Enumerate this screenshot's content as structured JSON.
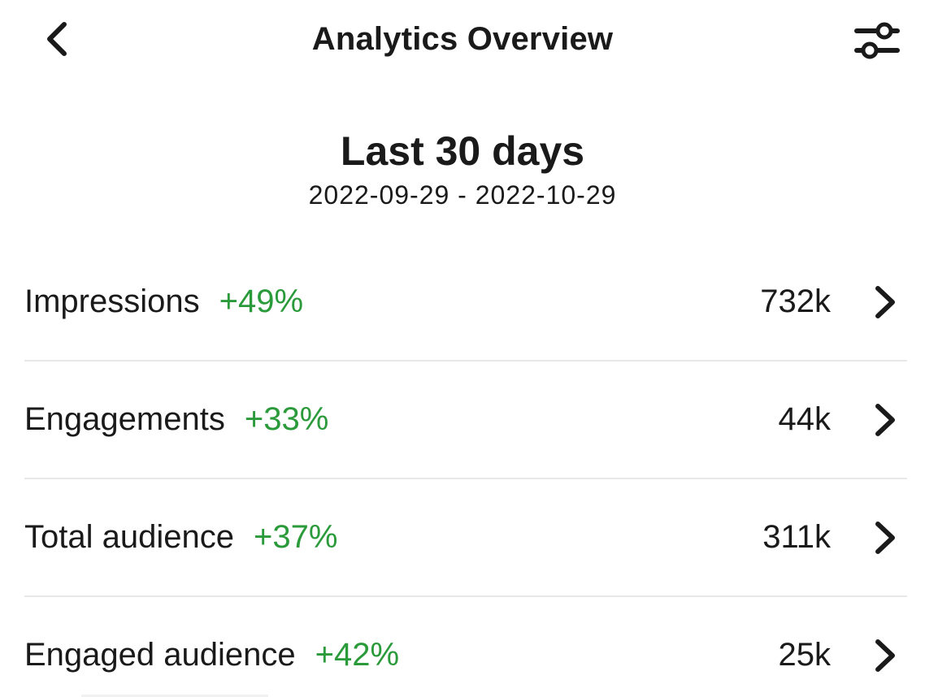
{
  "header": {
    "title": "Analytics Overview",
    "back_icon": "chevron-left-icon",
    "filter_icon": "sliders-icon"
  },
  "period": {
    "title": "Last 30 days",
    "range": "2022-09-29 - 2022-10-29"
  },
  "metrics": [
    {
      "label": "Impressions",
      "change": "+49%",
      "value": "732k"
    },
    {
      "label": "Engagements",
      "change": "+33%",
      "value": "44k"
    },
    {
      "label": "Total audience",
      "change": "+37%",
      "value": "311k"
    },
    {
      "label": "Engaged audience",
      "change": "+42%",
      "value": "25k"
    }
  ],
  "colors": {
    "positive_change": "#2a9a3a",
    "text": "#1a1a1a",
    "divider": "#e8e8e8"
  }
}
